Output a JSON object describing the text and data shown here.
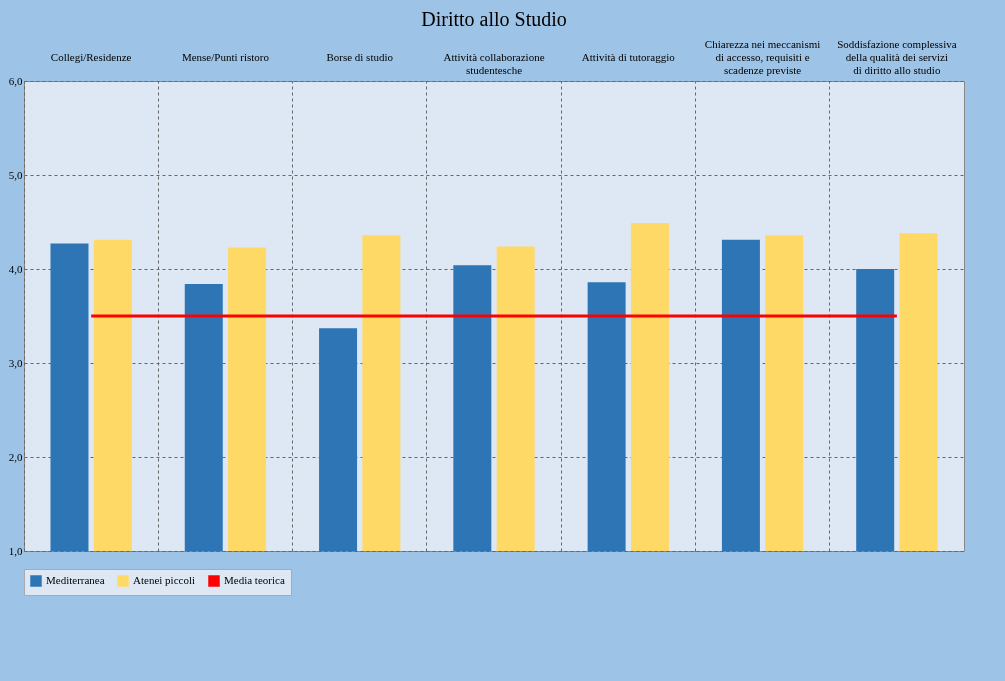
{
  "chart_data": {
    "type": "bar",
    "title": "Diritto allo Studio",
    "categories": [
      "Collegi/Residenze",
      "Mense/Punti ristoro",
      "Borse di studio",
      "Attività collaborazione studentesche",
      "Attività di tutoraggio",
      "Chiarezza nei meccanismi di accesso, requisiti e scadenze previste",
      "Soddisfazione complessiva della qualità dei servizi di diritto allo studio"
    ],
    "series": [
      {
        "name": "Mediterranea",
        "color": "#2e75b6",
        "values": [
          4.27,
          3.84,
          3.37,
          4.04,
          3.86,
          4.31,
          4.0
        ]
      },
      {
        "name": "Atenei piccoli",
        "color": "#ffd966",
        "values": [
          4.31,
          4.23,
          4.36,
          4.24,
          4.49,
          4.36,
          4.38
        ]
      },
      {
        "name": "Media teorica",
        "type": "line",
        "color": "#ff0000",
        "values": [
          3.5,
          3.5,
          3.5,
          3.5,
          3.5,
          3.5,
          3.5
        ]
      }
    ],
    "ylim": [
      1,
      6
    ],
    "yticks": [
      {
        "value": 1,
        "label": "1,0"
      },
      {
        "value": 2,
        "label": "2,0"
      },
      {
        "value": 3,
        "label": "3,0"
      },
      {
        "value": 4,
        "label": "4,0"
      },
      {
        "value": 5,
        "label": "5,0"
      },
      {
        "value": 6,
        "label": "6,0"
      }
    ],
    "grid": true,
    "legend": "bottom"
  }
}
